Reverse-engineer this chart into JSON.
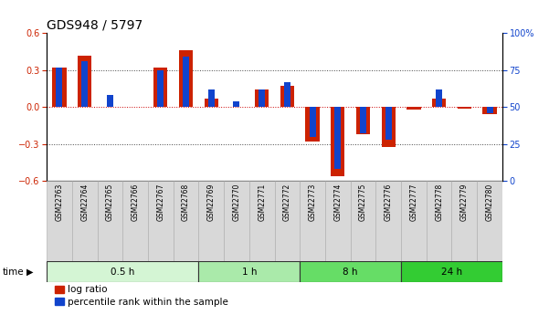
{
  "title": "GDS948 / 5797",
  "samples": [
    "GSM22763",
    "GSM22764",
    "GSM22765",
    "GSM22766",
    "GSM22767",
    "GSM22768",
    "GSM22769",
    "GSM22770",
    "GSM22771",
    "GSM22772",
    "GSM22773",
    "GSM22774",
    "GSM22775",
    "GSM22776",
    "GSM22777",
    "GSM22778",
    "GSM22779",
    "GSM22780"
  ],
  "log_ratio": [
    0.32,
    0.42,
    0.0,
    0.0,
    0.32,
    0.46,
    0.07,
    0.0,
    0.14,
    0.17,
    -0.28,
    -0.56,
    -0.22,
    -0.32,
    -0.02,
    0.07,
    -0.01,
    -0.06
  ],
  "percentile": [
    0.77,
    0.81,
    0.58,
    0.5,
    0.75,
    0.84,
    0.62,
    0.54,
    0.62,
    0.67,
    0.3,
    0.08,
    0.32,
    0.28,
    0.5,
    0.62,
    0.5,
    0.46
  ],
  "time_groups": [
    {
      "label": "0.5 h",
      "start": 0,
      "end": 6,
      "color": "#d4f5d4"
    },
    {
      "label": "1 h",
      "start": 6,
      "end": 10,
      "color": "#aaeaaa"
    },
    {
      "label": "8 h",
      "start": 10,
      "end": 14,
      "color": "#66dd66"
    },
    {
      "label": "24 h",
      "start": 14,
      "end": 18,
      "color": "#33cc33"
    }
  ],
  "ylim": [
    -0.6,
    0.6
  ],
  "yticks_left": [
    -0.6,
    -0.3,
    0.0,
    0.3,
    0.6
  ],
  "yticks_right": [
    0,
    25,
    50,
    75,
    100
  ],
  "bar_color_red": "#cc2200",
  "bar_color_blue": "#1144cc",
  "dotted_line_color": "#444444",
  "zero_line_color": "#cc0000",
  "bg_color": "#ffffff",
  "label_box_color": "#d8d8d8",
  "title_fontsize": 10,
  "tick_fontsize": 7,
  "legend_fontsize": 7.5
}
